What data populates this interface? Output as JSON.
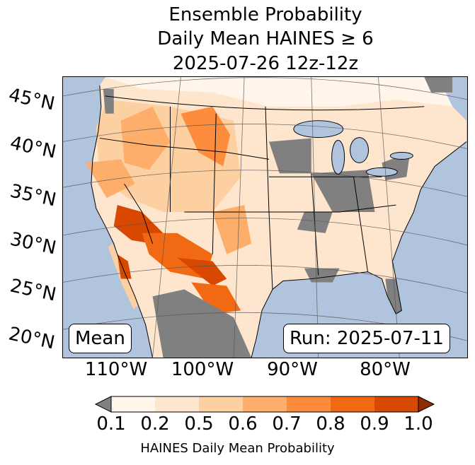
{
  "title": {
    "line1": "Ensemble Probability",
    "line2": "Daily Mean HAINES ≥ 6",
    "line3": "2025-07-26 12z-12z"
  },
  "map": {
    "lat_labels": [
      "45°N",
      "40°N",
      "35°N",
      "30°N",
      "25°N",
      "20°N"
    ],
    "lon_labels": [
      "110°W",
      "100°W",
      "90°W",
      "80°W"
    ],
    "stat_label": "Mean",
    "run_label": "Run: 2025-07-11",
    "colors": {
      "ocean": "#b0c4de",
      "land": "#fee6ce",
      "missing": "#808080"
    }
  },
  "colorbar": {
    "ticks": [
      "0.1",
      "0.2",
      "0.5",
      "0.6",
      "0.7",
      "0.8",
      "0.9",
      "1.0"
    ],
    "colors": [
      "#fff5eb",
      "#fee6ce",
      "#fdd0a2",
      "#fdae6b",
      "#fd8d3c",
      "#f16913",
      "#d94801"
    ],
    "under_color": "#808080",
    "over_color": "#8c2d04",
    "label": "HAINES Daily Mean Probability"
  }
}
